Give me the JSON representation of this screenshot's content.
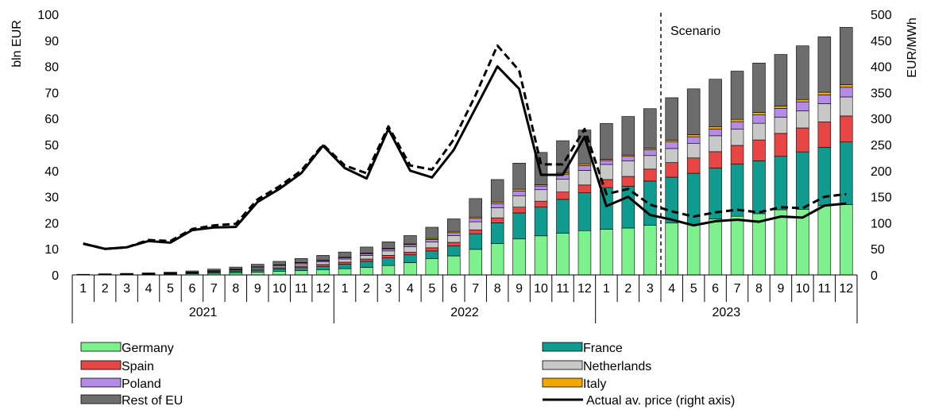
{
  "chart_data": {
    "type": "bar",
    "stacked": true,
    "categories": [
      "1",
      "2",
      "3",
      "4",
      "5",
      "6",
      "7",
      "8",
      "9",
      "10",
      "11",
      "12",
      "1",
      "2",
      "3",
      "4",
      "5",
      "6",
      "7",
      "8",
      "9",
      "10",
      "11",
      "12",
      "1",
      "2",
      "3",
      "4",
      "5",
      "6",
      "7",
      "8",
      "9",
      "10",
      "11",
      "12"
    ],
    "year_groups": [
      {
        "label": "2021",
        "count": 12
      },
      {
        "label": "2022",
        "count": 12
      },
      {
        "label": "2023",
        "count": 12
      }
    ],
    "ylabel": "bln EUR",
    "y2label": "EUR/MWh",
    "ylim": [
      0,
      100
    ],
    "yticks": [
      0,
      10,
      20,
      30,
      40,
      50,
      60,
      70,
      80,
      90,
      100
    ],
    "y2lim": [
      0,
      500
    ],
    "y2ticks": [
      0,
      50,
      100,
      150,
      200,
      250,
      300,
      350,
      400,
      450,
      500
    ],
    "annotation": {
      "text": "Scenario",
      "after_index": 26
    },
    "series": [
      {
        "name": "Germany",
        "color": "#7ef08e",
        "values": [
          0.05,
          0.1,
          0.15,
          0.2,
          0.3,
          0.4,
          0.6,
          0.8,
          1.1,
          1.4,
          1.7,
          2.0,
          2.4,
          2.9,
          3.6,
          4.7,
          6.2,
          7.3,
          9.8,
          12.0,
          13.8,
          15.0,
          16.0,
          17.0,
          17.5,
          18.0,
          19.0,
          19.9,
          19.4,
          21.5,
          22.5,
          23.5,
          25.0,
          25.2,
          26.7,
          27.0
        ]
      },
      {
        "name": "France",
        "color": "#0f9b8e",
        "values": [
          0.05,
          0.1,
          0.1,
          0.15,
          0.2,
          0.3,
          0.4,
          0.5,
          0.7,
          0.9,
          1.1,
          1.3,
          1.7,
          2.3,
          2.9,
          3.0,
          3.0,
          3.8,
          6.0,
          8.0,
          10.0,
          11.0,
          13.0,
          14.5,
          16.0,
          16.0,
          17.0,
          17.6,
          19.6,
          19.5,
          20.0,
          20.3,
          20.5,
          22.0,
          22.3,
          24.0
        ]
      },
      {
        "name": "Spain",
        "color": "#e84545",
        "values": [
          0.02,
          0.05,
          0.05,
          0.07,
          0.1,
          0.15,
          0.2,
          0.3,
          0.4,
          0.5,
          0.6,
          0.7,
          0.8,
          0.9,
          1.0,
          1.0,
          1.2,
          1.4,
          1.5,
          1.9,
          2.2,
          2.3,
          2.8,
          3.0,
          3.1,
          3.8,
          4.6,
          5.6,
          5.9,
          6.3,
          7.2,
          8.0,
          8.8,
          9.2,
          9.7,
          10.0
        ]
      },
      {
        "name": "Netherlands",
        "color": "#c8c8c8",
        "values": [
          0.05,
          0.05,
          0.1,
          0.1,
          0.1,
          0.15,
          0.25,
          0.35,
          0.5,
          0.6,
          0.8,
          1.0,
          1.2,
          1.4,
          1.7,
          2.1,
          2.3,
          2.6,
          3.1,
          3.9,
          4.4,
          4.4,
          5.0,
          5.6,
          5.8,
          5.9,
          5.2,
          5.4,
          5.5,
          6.1,
          6.3,
          6.4,
          6.2,
          6.6,
          7.0,
          7.3
        ]
      },
      {
        "name": "Poland",
        "color": "#b48ce6",
        "values": [
          0.02,
          0.03,
          0.04,
          0.05,
          0.06,
          0.1,
          0.15,
          0.2,
          0.3,
          0.35,
          0.4,
          0.5,
          0.5,
          0.6,
          0.7,
          0.8,
          0.9,
          1.1,
          1.3,
          1.6,
          1.8,
          1.4,
          1.7,
          1.8,
          1.5,
          1.8,
          2.2,
          2.5,
          2.6,
          2.6,
          2.8,
          3.2,
          3.4,
          3.4,
          3.4,
          3.7
        ]
      },
      {
        "name": "Italy",
        "color": "#f0a800",
        "values": [
          0.01,
          0.01,
          0.01,
          0.02,
          0.02,
          0.03,
          0.05,
          0.07,
          0.1,
          0.15,
          0.2,
          0.2,
          0.2,
          0.3,
          0.3,
          0.3,
          0.4,
          0.5,
          0.5,
          0.6,
          0.7,
          0.5,
          0.6,
          0.7,
          0.5,
          0.5,
          0.6,
          0.7,
          0.8,
          0.8,
          0.9,
          0.9,
          0.9,
          0.9,
          1.0,
          1.0
        ]
      },
      {
        "name": "Rest of EU",
        "color": "#6d6d6d",
        "values": [
          0.05,
          0.1,
          0.15,
          0.2,
          0.3,
          0.4,
          0.6,
          0.8,
          1.0,
          1.3,
          1.5,
          1.8,
          2.0,
          2.3,
          2.5,
          3.2,
          4.3,
          4.8,
          7.1,
          8.6,
          10.0,
          12.4,
          12.4,
          13.0,
          13.7,
          14.8,
          15.2,
          16.3,
          17.6,
          18.3,
          18.5,
          19.0,
          19.8,
          20.6,
          21.3,
          22.0
        ]
      }
    ],
    "lines": [
      {
        "name": "Actual av. price (right axis)",
        "axis": "right",
        "dash": "solid",
        "color": "#000000",
        "values": [
          60,
          50,
          53,
          65,
          62,
          86,
          91,
          92,
          140,
          165,
          195,
          248,
          205,
          185,
          280,
          200,
          187,
          240,
          320,
          400,
          357,
          192,
          192,
          265,
          132,
          150,
          115,
          106,
          95,
          103,
          106,
          102,
          112,
          110,
          133,
          137
        ]
      },
      {
        "axis": "right",
        "dash": "dashed",
        "color": "#000000",
        "values": [
          60,
          50,
          53,
          67,
          65,
          88,
          95,
          98,
          145,
          170,
          200,
          250,
          210,
          195,
          285,
          210,
          202,
          260,
          345,
          440,
          392,
          212,
          212,
          280,
          155,
          165,
          135,
          122,
          112,
          120,
          125,
          120,
          130,
          128,
          150,
          155
        ]
      }
    ]
  },
  "legend": {
    "items": [
      {
        "label": "Germany",
        "type": "swatch",
        "color": "#7ef08e",
        "col": 0,
        "row": 0
      },
      {
        "label": "France",
        "type": "swatch",
        "color": "#0f9b8e",
        "col": 1,
        "row": 0
      },
      {
        "label": "Spain",
        "type": "swatch",
        "color": "#e84545",
        "col": 0,
        "row": 1
      },
      {
        "label": "Netherlands",
        "type": "swatch",
        "color": "#c8c8c8",
        "col": 1,
        "row": 1
      },
      {
        "label": "Poland",
        "type": "swatch",
        "color": "#b48ce6",
        "col": 0,
        "row": 2
      },
      {
        "label": "Italy",
        "type": "swatch",
        "color": "#f0a800",
        "col": 1,
        "row": 2
      },
      {
        "label": "Rest of EU",
        "type": "swatch",
        "color": "#6d6d6d",
        "col": 0,
        "row": 3
      },
      {
        "label": "Actual av. price (right axis)",
        "type": "line",
        "color": "#000000",
        "col": 1,
        "row": 3
      }
    ]
  }
}
